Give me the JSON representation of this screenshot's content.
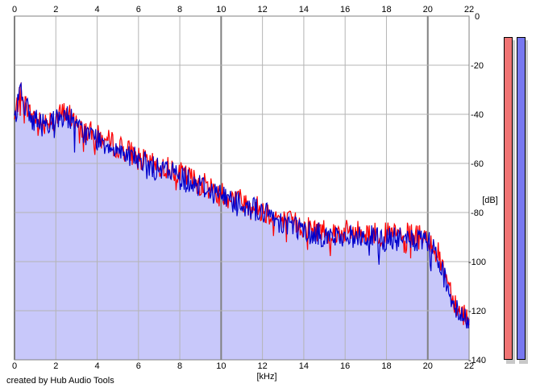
{
  "footer": {
    "text": "created by Hub Audio Tools"
  },
  "colors": {
    "background": "#ffffff",
    "fill": "#c8c8fa",
    "grid": "#b4b4b4",
    "major_grid": "#808080",
    "channel_left": "#ff0000",
    "channel_right": "#0000cc",
    "meter_left": "#f07474",
    "meter_right": "#7878f0"
  },
  "chart_data": {
    "type": "line",
    "title": "",
    "xlabel": "[kHz]",
    "ylabel": "[dB]",
    "xlim": [
      0,
      22
    ],
    "ylim": [
      -140,
      0
    ],
    "x_ticks": [
      "0",
      "2",
      "4",
      "6",
      "8",
      "10",
      "12",
      "14",
      "16",
      "18",
      "20",
      "22"
    ],
    "y_ticks": [
      "0",
      "-20",
      "-40",
      "-60",
      "-80",
      "-100",
      "-120",
      "-140"
    ],
    "grid": true,
    "series": [
      {
        "color": "#ff0000",
        "x": [
          0,
          0.25,
          0.5,
          0.75,
          1,
          1.25,
          1.5,
          1.75,
          2,
          2.25,
          2.5,
          2.75,
          3,
          3.25,
          3.5,
          3.75,
          4,
          4.25,
          4.5,
          4.75,
          5,
          5.25,
          5.5,
          5.75,
          6,
          6.25,
          6.5,
          6.75,
          7,
          7.25,
          7.5,
          7.75,
          8,
          8.25,
          8.5,
          8.75,
          9,
          9.25,
          9.5,
          9.75,
          10,
          10.25,
          10.5,
          10.75,
          11,
          11.25,
          11.5,
          11.75,
          12,
          12.25,
          12.5,
          12.75,
          13,
          13.25,
          13.5,
          13.75,
          14,
          14.25,
          14.5,
          14.75,
          15,
          15.25,
          15.5,
          15.75,
          16,
          16.25,
          16.5,
          16.75,
          17,
          17.25,
          17.5,
          17.75,
          18,
          18.25,
          18.5,
          18.75,
          19,
          19.25,
          19.5,
          19.75,
          20,
          20.25,
          20.5,
          20.75,
          21,
          21.25,
          21.5,
          21.75,
          22
        ],
        "values": [
          -43,
          -30,
          -35,
          -40,
          -41,
          -43,
          -43,
          -41,
          -42,
          -40,
          -39,
          -41,
          -45,
          -46,
          -47,
          -48,
          -49,
          -50,
          -51,
          -52,
          -53,
          -54,
          -55,
          -56,
          -58,
          -59,
          -60,
          -61,
          -62,
          -62,
          -62,
          -63,
          -64,
          -65,
          -66,
          -67,
          -68,
          -69,
          -70,
          -71,
          -72,
          -73,
          -74,
          -74,
          -75,
          -76,
          -77,
          -78,
          -79,
          -80,
          -81,
          -82,
          -83,
          -84,
          -84,
          -85,
          -86,
          -86,
          -87,
          -87,
          -87,
          -88,
          -88,
          -88,
          -88,
          -88,
          -88,
          -88,
          -88,
          -88,
          -89,
          -89,
          -89,
          -89,
          -89,
          -89,
          -89,
          -89,
          -90,
          -90,
          -90,
          -93,
          -97,
          -103,
          -108,
          -115,
          -120,
          -121,
          -123
        ]
      },
      {
        "color": "#0000cc",
        "x": [
          0,
          0.25,
          0.5,
          0.75,
          1,
          1.25,
          1.5,
          1.75,
          2,
          2.25,
          2.5,
          2.75,
          3,
          3.25,
          3.5,
          3.75,
          4,
          4.25,
          4.5,
          4.75,
          5,
          5.25,
          5.5,
          5.75,
          6,
          6.25,
          6.5,
          6.75,
          7,
          7.25,
          7.5,
          7.75,
          8,
          8.25,
          8.5,
          8.75,
          9,
          9.25,
          9.5,
          9.75,
          10,
          10.25,
          10.5,
          10.75,
          11,
          11.25,
          11.5,
          11.75,
          12,
          12.25,
          12.5,
          12.75,
          13,
          13.25,
          13.5,
          13.75,
          14,
          14.25,
          14.5,
          14.75,
          15,
          15.25,
          15.5,
          15.75,
          16,
          16.25,
          16.5,
          16.75,
          17,
          17.25,
          17.5,
          17.75,
          18,
          18.25,
          18.5,
          18.75,
          19,
          19.25,
          19.5,
          19.75,
          20,
          20.25,
          20.5,
          20.75,
          21,
          21.25,
          21.5,
          21.75,
          22
        ],
        "values": [
          -44,
          -28,
          -36,
          -41,
          -42,
          -44,
          -44,
          -42,
          -43,
          -41,
          -40,
          -42,
          -46,
          -47,
          -48,
          -49,
          -50,
          -51,
          -52,
          -53,
          -54,
          -55,
          -56,
          -57,
          -59,
          -60,
          -61,
          -62,
          -63,
          -63,
          -63,
          -64,
          -65,
          -66,
          -67,
          -68,
          -69,
          -70,
          -71,
          -72,
          -73,
          -74,
          -75,
          -75,
          -76,
          -77,
          -78,
          -79,
          -80,
          -81,
          -82,
          -83,
          -84,
          -85,
          -85,
          -86,
          -87,
          -88,
          -89,
          -89,
          -89,
          -90,
          -90,
          -90,
          -90,
          -90,
          -90,
          -90,
          -90,
          -90,
          -91,
          -91,
          -91,
          -91,
          -91,
          -91,
          -91,
          -91,
          -92,
          -92,
          -92,
          -95,
          -99,
          -105,
          -110,
          -117,
          -122,
          -123,
          -125
        ]
      }
    ],
    "meters": {
      "left_level_db": -140,
      "right_level_db": -140
    }
  }
}
